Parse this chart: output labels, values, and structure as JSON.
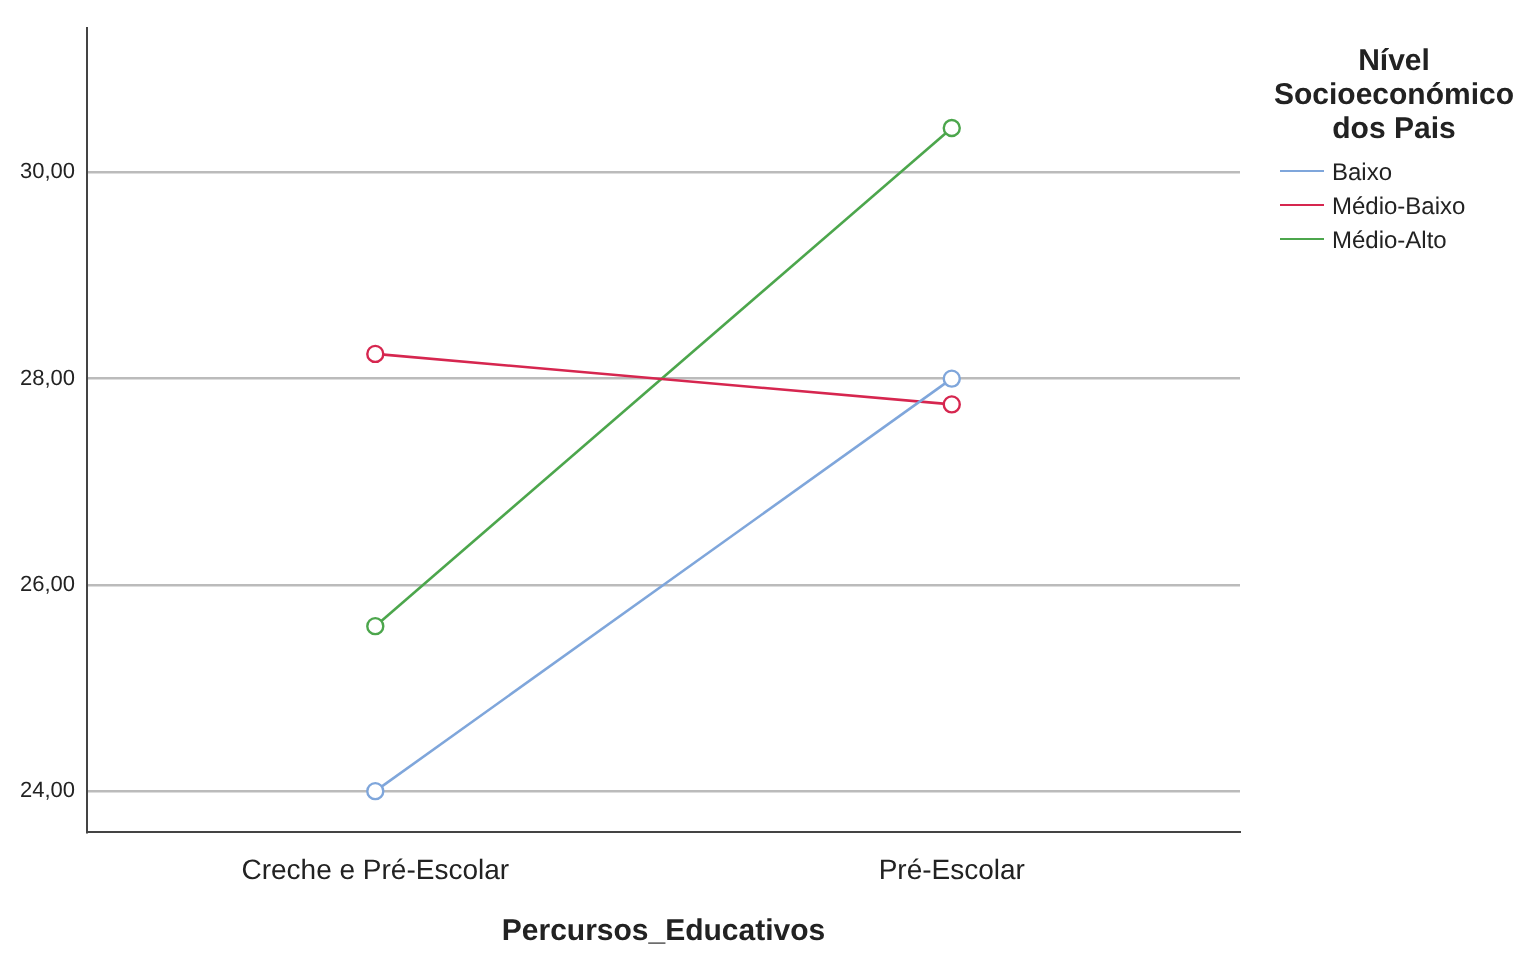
{
  "chart_data": {
    "type": "line",
    "xlabel": "Percursos_Educativos",
    "legend_title": "Nível Socioeconómico dos Pais",
    "categories": [
      "Creche e Pré-Escolar",
      "Pré-Escolar"
    ],
    "series": [
      {
        "name": "Baixo",
        "color": "#7fa6db",
        "values": [
          24.0,
          28.0
        ]
      },
      {
        "name": "Médio-Baixo",
        "color": "#d6264f",
        "values": [
          28.24,
          27.75
        ]
      },
      {
        "name": "Médio-Alto",
        "color": "#4ca64c",
        "values": [
          25.6,
          30.43
        ]
      }
    ],
    "ylim": [
      23.6,
      31.4
    ],
    "yticks": [
      {
        "value": 24,
        "label": "24,00"
      },
      {
        "value": 26,
        "label": "26,00"
      },
      {
        "value": 28,
        "label": "28,00"
      },
      {
        "value": 30,
        "label": "30,00"
      }
    ],
    "grid": "y",
    "legend": "top right",
    "marker": "circle",
    "line_style": "solid"
  }
}
